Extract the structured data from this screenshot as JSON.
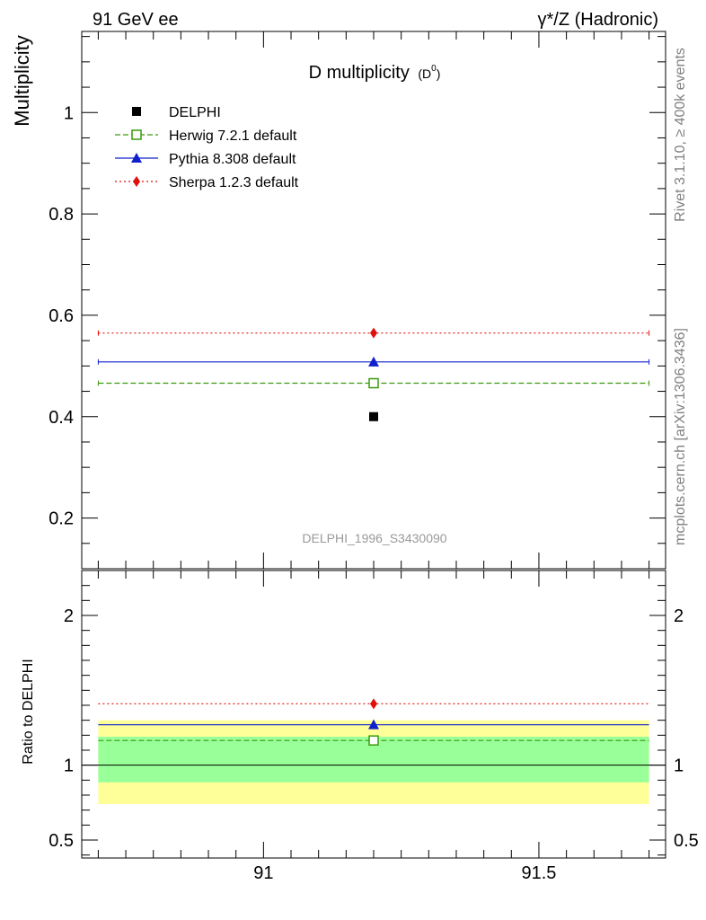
{
  "header": {
    "left": "91 GeV ee",
    "right": "γ*/Z (Hadronic)"
  },
  "side_labels": {
    "rivet": "Rivet 3.1.10, ≥ 400k events",
    "mcplots": "mcplots.cern.ch [arXiv:1306.3436]"
  },
  "chart_data": [
    {
      "type": "scatter",
      "title": "D multiplicity",
      "title_sub": "(D",
      "title_sup": "0",
      "title_close": ")",
      "ylabel": "Multiplicity",
      "analysis_id": "DELPHI_1996_S3430090",
      "xlim": [
        90.67,
        91.73
      ],
      "ylim": [
        0.1,
        1.16
      ],
      "yticks": [
        0.2,
        0.4,
        0.6,
        0.8,
        1
      ],
      "ytick_labels": [
        "0.2",
        "0.4",
        "0.6",
        "0.8",
        "1"
      ],
      "xticks": [
        91,
        91.5
      ],
      "legend_position": "top-left",
      "data": {
        "name": "DELPHI",
        "x": 91.2,
        "y": 0.4,
        "color": "#000000"
      },
      "series": [
        {
          "name": "Herwig 7.2.1 default",
          "x": [
            90.7,
            91.7
          ],
          "xpoint": 91.2,
          "y": 0.466,
          "color": "#3a9a0f",
          "style": "dashed",
          "marker": "open-square"
        },
        {
          "name": "Pythia 8.308 default",
          "x": [
            90.7,
            91.7
          ],
          "xpoint": 91.2,
          "y": 0.508,
          "color": "#1020cc",
          "style": "solid",
          "marker": "triangle"
        },
        {
          "name": "Sherpa 1.2.3 default",
          "x": [
            90.7,
            91.7
          ],
          "xpoint": 91.2,
          "y": 0.565,
          "color": "#e0100a",
          "style": "dotted",
          "marker": "diamond"
        }
      ]
    },
    {
      "type": "line",
      "ylabel": "Ratio to DELPHI",
      "xlim": [
        90.67,
        91.73
      ],
      "ylim": [
        0.38,
        2.3
      ],
      "yticks": [
        0.5,
        1,
        2
      ],
      "ytick_labels": [
        "0.5",
        "1",
        "2"
      ],
      "xticks": [
        91,
        91.5
      ],
      "xtick_labels": [
        "91",
        "91.5"
      ],
      "bands": [
        {
          "kind": "total-uncertainty",
          "low": 0.74,
          "high": 1.3,
          "color": "#ffff99"
        },
        {
          "kind": "stat-uncertainty",
          "low": 0.885,
          "high": 1.19,
          "color": "#99ff99"
        }
      ],
      "series": [
        {
          "name": "Herwig 7.2.1 default",
          "y": 1.165,
          "color": "#3a9a0f",
          "style": "dashed",
          "marker": "open-square"
        },
        {
          "name": "Pythia 8.308 default",
          "y": 1.27,
          "color": "#1020cc",
          "style": "solid",
          "marker": "triangle"
        },
        {
          "name": "Sherpa 1.2.3 default",
          "y": 1.41,
          "color": "#e0100a",
          "style": "dotted",
          "marker": "diamond"
        }
      ]
    }
  ]
}
